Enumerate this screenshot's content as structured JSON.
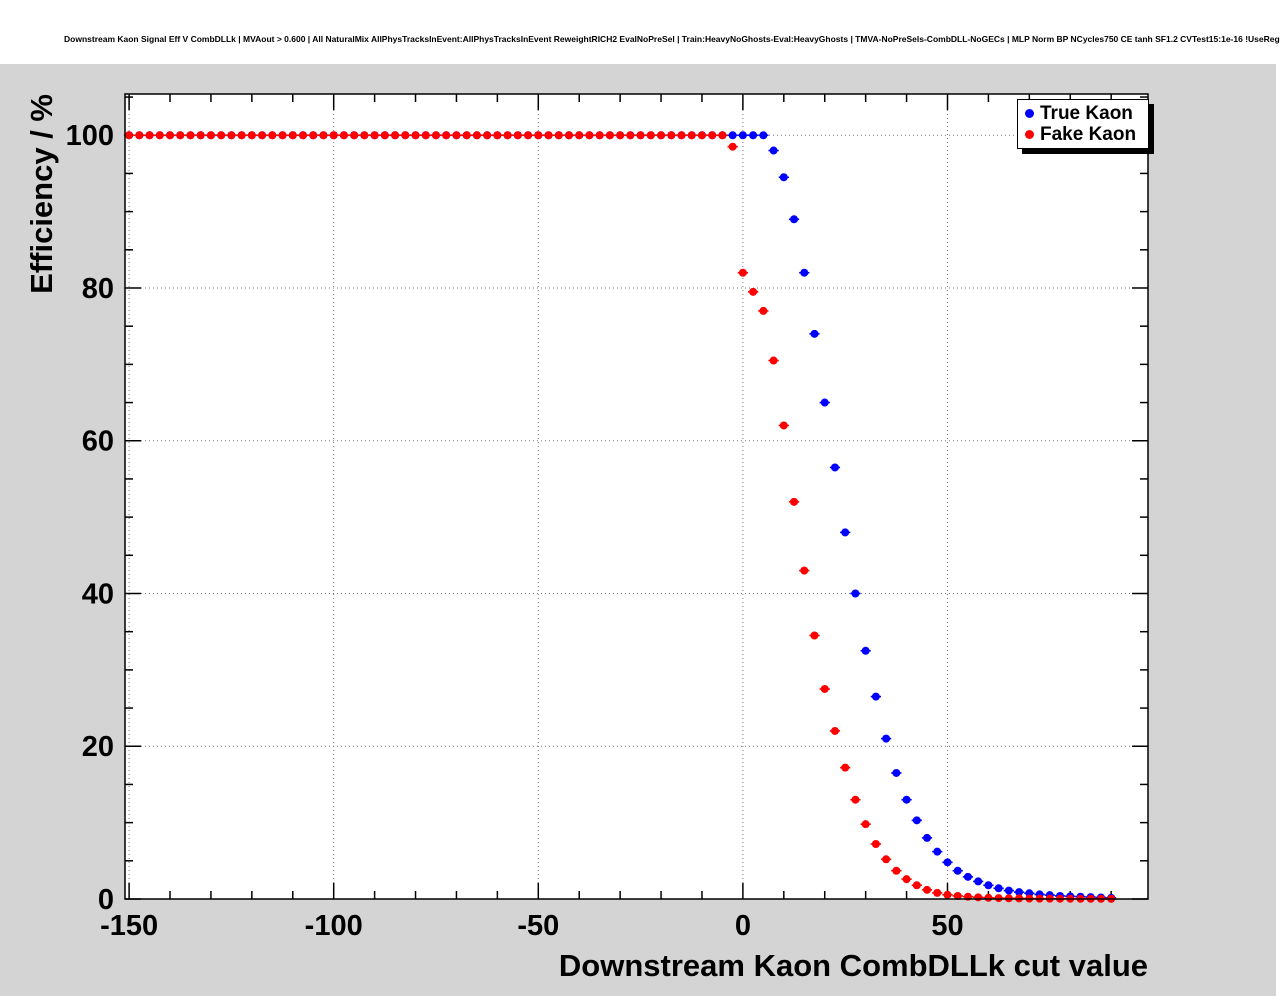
{
  "title": "Downstream Kaon Signal Eff V CombDLLk | MVAout > 0.600 | All NaturalMix AllPhysTracksInEvent:AllPhysTracksInEvent ReweightRICH2 EvalNoPreSel | Train:HeavyNoGhosts-Eval:HeavyGhosts | TMVA-NoPreSels-CombDLL-NoGECs | MLP Norm BP NCycles750 CE tanh SF1.2 CVTest15:1e-16 !UseReg",
  "colors": {
    "canvas_bg": "#d4d4d4",
    "frame_bg": "#ffffff",
    "axis": "#000000",
    "true_kaon": "#0000ff",
    "fake_kaon": "#ff0000"
  },
  "chart_data": {
    "type": "scatter",
    "title": "Downstream Kaon Signal Eff V CombDLLk | MVAout > 0.600 | All NaturalMix AllPhysTracksInEvent:AllPhysTracksInEvent ReweightRICH2 EvalNoPreSel | Train:HeavyNoGhosts-Eval:HeavyGhosts | TMVA-NoPreSels-CombDLL-NoGECs | MLP Norm BP NCycles750 CE tanh SF1.2 CVTest15:1e-16 !UseReg",
    "xlabel": "Downstream Kaon CombDLLk cut value",
    "ylabel": "Efficiency / %",
    "xlim": [
      -151,
      99
    ],
    "ylim": [
      0,
      105.4
    ],
    "x_ticks": [
      -150,
      -100,
      -50,
      0,
      50
    ],
    "x_tick_labels": [
      "-150",
      "-100",
      "-50",
      "0",
      "50"
    ],
    "x_minor_step": 10,
    "y_ticks": [
      0,
      20,
      40,
      60,
      80,
      100
    ],
    "y_tick_labels": [
      "0",
      "20",
      "40",
      "60",
      "80",
      "100"
    ],
    "y_minor_step": 5,
    "grid": "dotted",
    "legend_position": "top-right",
    "marker": "filled-circle",
    "x": [
      -150,
      -147.5,
      -145,
      -142.5,
      -140,
      -137.5,
      -135,
      -132.5,
      -130,
      -127.5,
      -125,
      -122.5,
      -120,
      -117.5,
      -115,
      -112.5,
      -110,
      -107.5,
      -105,
      -102.5,
      -100,
      -97.5,
      -95,
      -92.5,
      -90,
      -87.5,
      -85,
      -82.5,
      -80,
      -77.5,
      -75,
      -72.5,
      -70,
      -67.5,
      -65,
      -62.5,
      -60,
      -57.5,
      -55,
      -52.5,
      -50,
      -47.5,
      -45,
      -42.5,
      -40,
      -37.5,
      -35,
      -32.5,
      -30,
      -27.5,
      -25,
      -22.5,
      -20,
      -17.5,
      -15,
      -12.5,
      -10,
      -7.5,
      -5,
      -2.5,
      0,
      2.5,
      5,
      7.5,
      10,
      12.5,
      15,
      17.5,
      20,
      22.5,
      25,
      27.5,
      30,
      32.5,
      35,
      37.5,
      40,
      42.5,
      45,
      47.5,
      50,
      52.5,
      55,
      57.5,
      60,
      62.5,
      65,
      67.5,
      70,
      72.5,
      75,
      77.5,
      80,
      82.5,
      85,
      87.5,
      90
    ],
    "series": [
      {
        "name": "True Kaon",
        "color": "#0000ff",
        "y": [
          100,
          100,
          100,
          100,
          100,
          100,
          100,
          100,
          100,
          100,
          100,
          100,
          100,
          100,
          100,
          100,
          100,
          100,
          100,
          100,
          100,
          100,
          100,
          100,
          100,
          100,
          100,
          100,
          100,
          100,
          100,
          100,
          100,
          100,
          100,
          100,
          100,
          100,
          100,
          100,
          100,
          100,
          100,
          100,
          100,
          100,
          100,
          100,
          100,
          100,
          100,
          100,
          100,
          100,
          100,
          100,
          100,
          100,
          100,
          100,
          100,
          100,
          100,
          98,
          94.5,
          89,
          82,
          74,
          65,
          56.5,
          48,
          40,
          32.5,
          26.5,
          21,
          16.5,
          13,
          10.3,
          8,
          6.2,
          4.8,
          3.7,
          2.9,
          2.3,
          1.8,
          1.4,
          1.1,
          0.9,
          0.75,
          0.6,
          0.5,
          0.4,
          0.35,
          0.3,
          0.25,
          0.2,
          0.15
        ]
      },
      {
        "name": "Fake Kaon",
        "color": "#ff0000",
        "y": [
          100,
          100,
          100,
          100,
          100,
          100,
          100,
          100,
          100,
          100,
          100,
          100,
          100,
          100,
          100,
          100,
          100,
          100,
          100,
          100,
          100,
          100,
          100,
          100,
          100,
          100,
          100,
          100,
          100,
          100,
          100,
          100,
          100,
          100,
          100,
          100,
          100,
          100,
          100,
          100,
          100,
          100,
          100,
          100,
          100,
          100,
          100,
          100,
          100,
          100,
          100,
          100,
          100,
          100,
          100,
          100,
          100,
          100,
          100,
          98.5,
          82,
          79.5,
          77,
          70.5,
          62,
          52,
          43,
          34.5,
          27.5,
          22,
          17.2,
          13,
          9.8,
          7.2,
          5.2,
          3.7,
          2.6,
          1.8,
          1.2,
          0.8,
          0.55,
          0.4,
          0.3,
          0.22,
          0.16,
          0.12,
          0.1,
          0.08,
          0.06,
          0.05,
          0.05,
          0.04,
          0.04,
          0.03,
          0.03,
          0.03,
          0.02
        ]
      }
    ]
  }
}
